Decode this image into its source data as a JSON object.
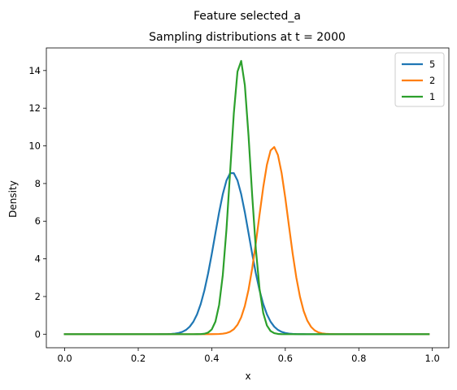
{
  "chart_data": {
    "type": "line",
    "suptitle": "Feature selected_a",
    "title": "Sampling distributions at t = 2000",
    "xlabel": "x",
    "ylabel": "Density",
    "xlim": [
      -0.05,
      1.045
    ],
    "ylim": [
      -0.72,
      15.2
    ],
    "xticks": [
      0.0,
      0.2,
      0.4,
      0.6,
      0.8,
      1.0
    ],
    "xtick_labels": [
      "0.0",
      "0.2",
      "0.4",
      "0.6",
      "0.8",
      "1.0"
    ],
    "yticks": [
      0,
      2,
      4,
      6,
      8,
      10,
      12,
      14
    ],
    "ytick_labels": [
      "0",
      "2",
      "4",
      "6",
      "8",
      "10",
      "12",
      "14"
    ],
    "legend_position": "top-right",
    "grid": false,
    "series_params": [
      {
        "name": "5",
        "color": "#1f77b4",
        "mu": 0.455,
        "peak": 8.6
      },
      {
        "name": "2",
        "color": "#ff7f0e",
        "mu": 0.568,
        "peak": 9.95
      },
      {
        "name": "1",
        "color": "#2ca02c",
        "mu": 0.478,
        "peak": 14.55
      }
    ],
    "x_range": [
      0.0,
      0.99
    ]
  }
}
